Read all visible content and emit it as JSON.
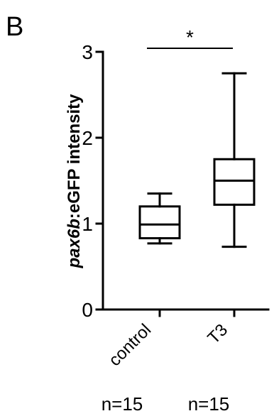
{
  "panel_label": "B",
  "chart_data": {
    "type": "box",
    "ylabel_italic": "pax6b",
    "ylabel_rest": ":eGFP intensity",
    "ylim": [
      0,
      3
    ],
    "yticks": [
      "0",
      "1",
      "2",
      "3"
    ],
    "ytick_values": [
      0,
      1,
      2,
      3
    ],
    "categories": [
      "control",
      "T3"
    ],
    "n_labels": [
      "n=15",
      "n=15"
    ],
    "boxes": [
      {
        "name": "control",
        "min": 0.77,
        "q1": 0.83,
        "median": 0.99,
        "q3": 1.2,
        "max": 1.35
      },
      {
        "name": "T3",
        "min": 0.73,
        "q1": 1.22,
        "median": 1.5,
        "q3": 1.75,
        "max": 2.75
      }
    ],
    "significance": {
      "label": "*",
      "between": [
        "control",
        "T3"
      ],
      "y": 3.02
    },
    "grid": false
  }
}
